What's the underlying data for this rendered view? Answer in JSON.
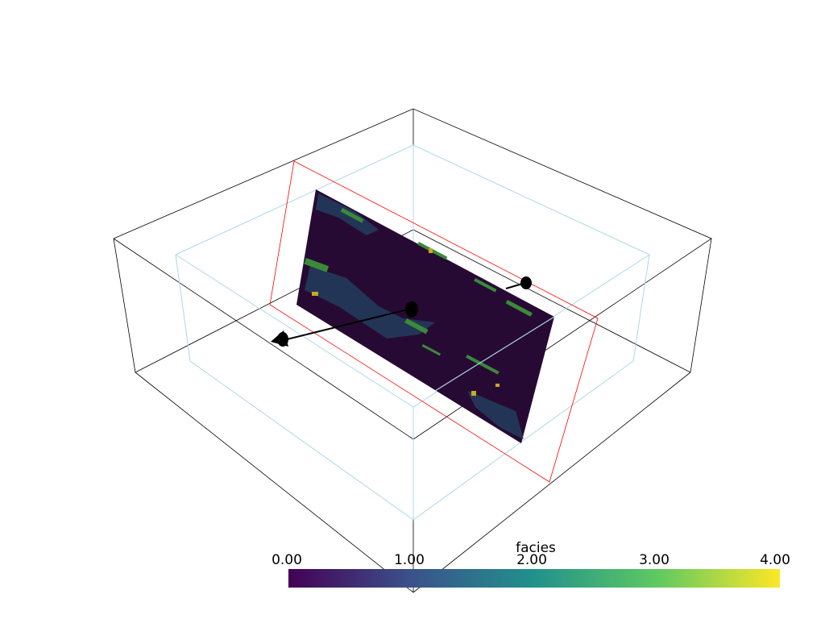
{
  "scene": {
    "scalar_name": "facies",
    "colormap": "viridis",
    "colors": {
      "background": "#ffffff",
      "outer_bounds": "#000000",
      "inner_bounds": "#add8e6",
      "plane_widget": "#ff0000",
      "slice_base": "#270a34",
      "arrow": "#000000"
    }
  },
  "colorbar": {
    "title": "facies",
    "range": [
      0.0,
      4.0
    ],
    "ticks": [
      "0.00",
      "1.00",
      "2.00",
      "3.00",
      "4.00"
    ],
    "stops": [
      "#440154",
      "#3b528b",
      "#21918c",
      "#5ec962",
      "#fde725"
    ]
  }
}
